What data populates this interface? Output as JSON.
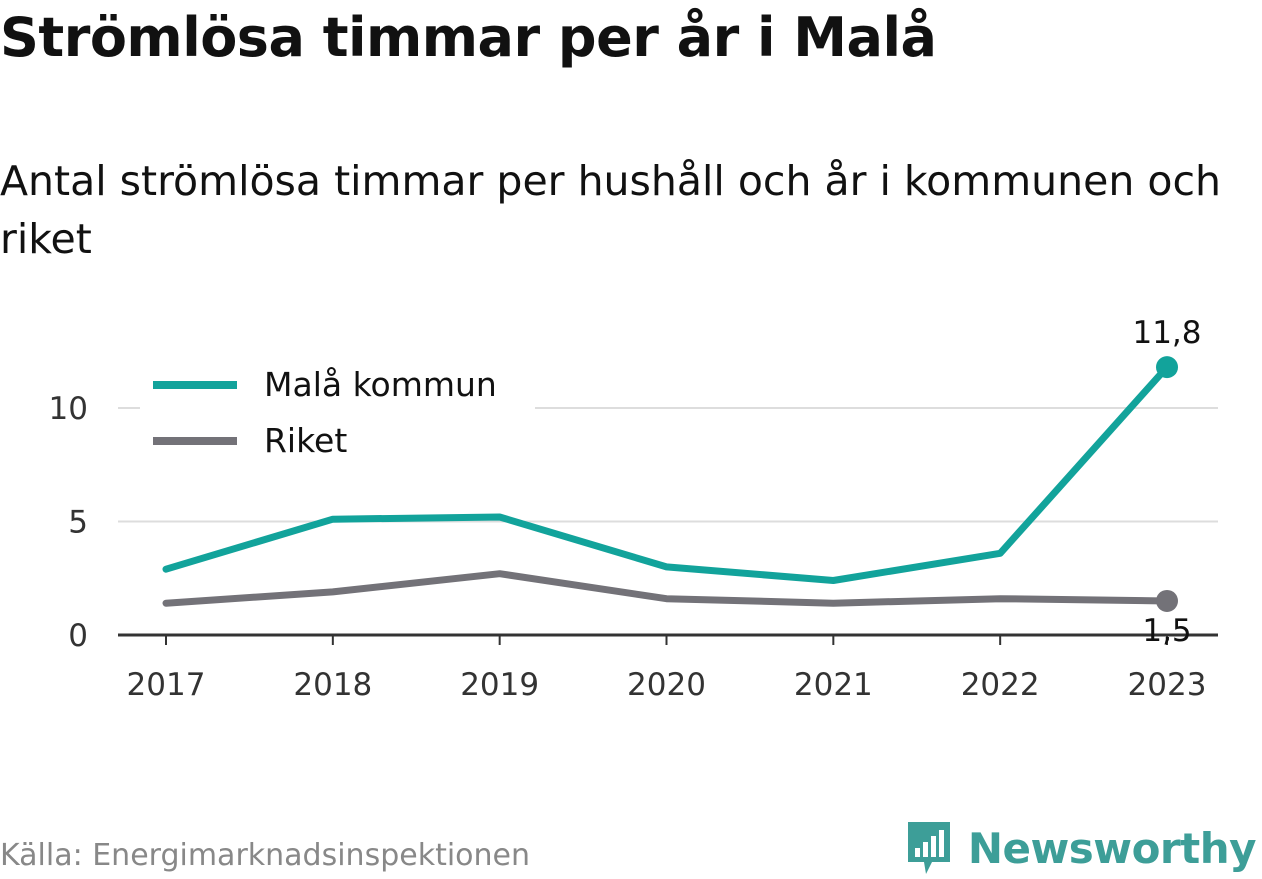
{
  "title": "Strömlösa timmar per år i Malå",
  "subtitle": "Antal strömlösa timmar per hushåll och år i kommunen och riket",
  "source": "Källa: Energimarknadsinspektionen",
  "brand": {
    "name": "Newsworthy",
    "icon": "newsworthy-logo-icon",
    "color": "#3d9e98"
  },
  "colors": {
    "accent": "#12a39b",
    "secondary": "#737278",
    "grid": "#dddddd",
    "axis": "#333333"
  },
  "chart_data": {
    "type": "line",
    "title": "Strömlösa timmar per år i Malå",
    "subtitle": "Antal strömlösa timmar per hushåll och år i kommunen och riket",
    "xlabel": "",
    "ylabel": "",
    "categories": [
      "2017",
      "2018",
      "2019",
      "2020",
      "2021",
      "2022",
      "2023"
    ],
    "ylim": [
      0,
      12
    ],
    "yticks": [
      0,
      5,
      10
    ],
    "ytick_labels": [
      "0",
      "5",
      "10"
    ],
    "grid": true,
    "legend_position": "top-left",
    "series": [
      {
        "name": "Malå kommun",
        "color": "#12a39b",
        "values": [
          2.9,
          5.1,
          5.2,
          3.0,
          2.4,
          3.6,
          11.8
        ],
        "end_label": "11,8"
      },
      {
        "name": "Riket",
        "color": "#737278",
        "values": [
          1.4,
          1.9,
          2.7,
          1.6,
          1.4,
          1.6,
          1.5
        ],
        "end_label": "1,5"
      }
    ]
  }
}
